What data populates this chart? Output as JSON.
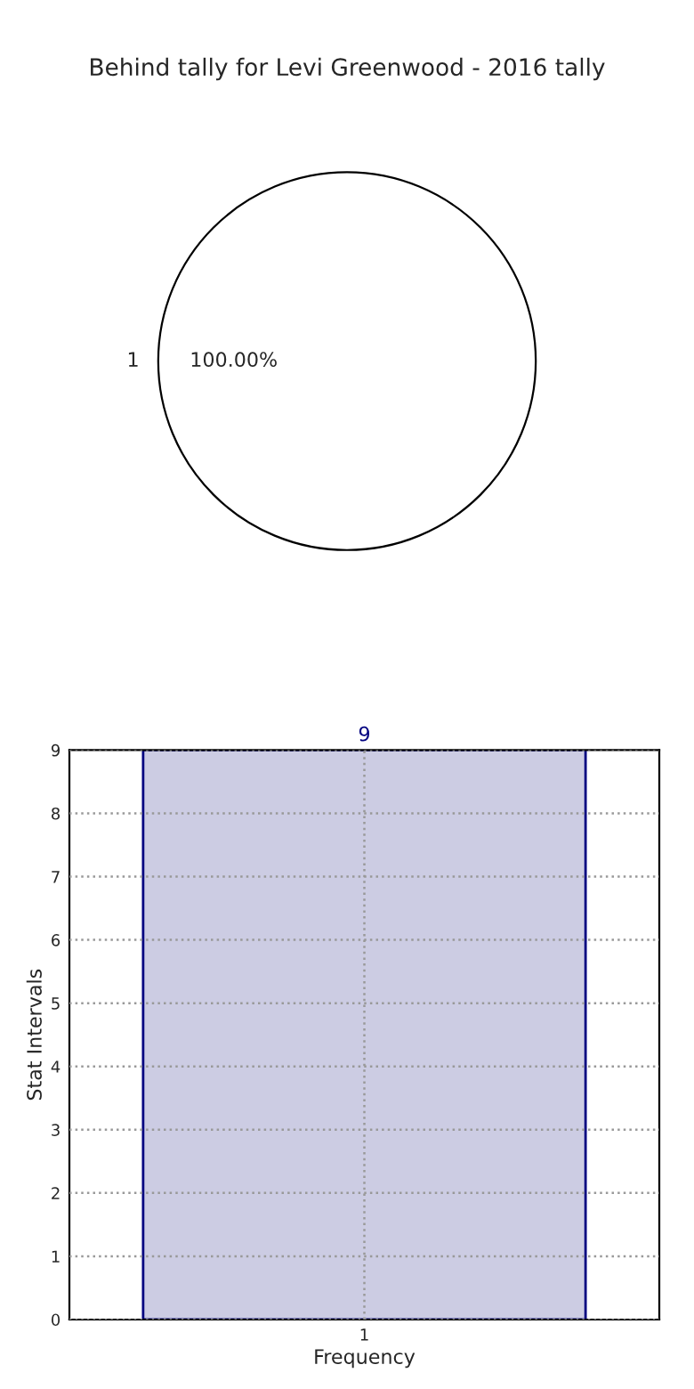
{
  "chart_data": [
    {
      "type": "pie",
      "title": "Behind tally for Levi Greenwood - 2016 tally",
      "categories": [
        "1"
      ],
      "values": [
        100
      ],
      "value_labels": [
        "100.00%"
      ],
      "colors": [
        "#ffffff"
      ]
    },
    {
      "type": "bar",
      "xlabel": "Frequency",
      "ylabel": "Stat Intervals",
      "categories": [
        "1"
      ],
      "values": [
        9
      ],
      "color": "#ccccE3",
      "data_labels": true,
      "ylim": [
        0,
        9
      ],
      "yticks": [
        0,
        1,
        2,
        3,
        4,
        5,
        6,
        7,
        8,
        9
      ],
      "grid": true
    }
  ]
}
